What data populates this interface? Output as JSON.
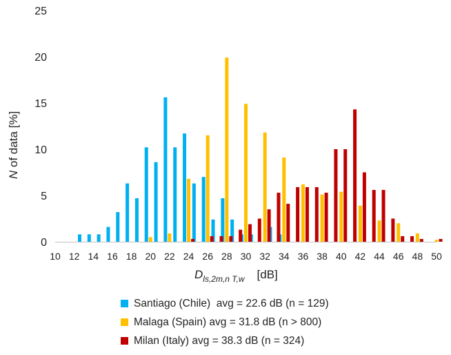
{
  "chart_data": {
    "type": "bar",
    "x": [
      10,
      11,
      12,
      13,
      14,
      15,
      16,
      17,
      18,
      19,
      20,
      21,
      22,
      23,
      24,
      25,
      26,
      27,
      28,
      29,
      30,
      31,
      32,
      33,
      34,
      35,
      36,
      37,
      38,
      39,
      40,
      41,
      42,
      43,
      44,
      45,
      46,
      47,
      48,
      49,
      50
    ],
    "xticks": [
      "10",
      "12",
      "14",
      "16",
      "18",
      "20",
      "22",
      "24",
      "26",
      "28",
      "30",
      "32",
      "34",
      "36",
      "38",
      "40",
      "42",
      "44",
      "46",
      "48",
      "50"
    ],
    "yticks": [
      "0",
      "5",
      "10",
      "15",
      "20",
      "25"
    ],
    "ylim": [
      0,
      25
    ],
    "xlim": [
      10,
      50
    ],
    "xlabel": {
      "symbol": "D",
      "subscript": "ls,2m,n T,w",
      "unit": "[dB]"
    },
    "ylabel": {
      "symbol": "N",
      "rest": " of data [%]"
    },
    "legend_position": "bottom",
    "grid": false,
    "series": [
      {
        "name": "Santiago (Chile)  avg = 22.6 dB (n = 129)",
        "color": "#00B0F0",
        "values": [
          0,
          0,
          0,
          0.8,
          0.8,
          0.8,
          1.6,
          3.2,
          6.3,
          4.7,
          10.2,
          8.6,
          15.6,
          10.2,
          11.7,
          6.3,
          7.0,
          2.4,
          4.7,
          2.4,
          0.8,
          0.8,
          0,
          1.6,
          0.8,
          0,
          0,
          0,
          0,
          0,
          0,
          0,
          0,
          0,
          0,
          0,
          0,
          0,
          0,
          0,
          0
        ]
      },
      {
        "name": "Malaga (Spain) avg = 31.8 dB (n > 800)",
        "color": "#FFC000",
        "values": [
          0,
          0,
          0,
          0,
          0,
          0,
          0,
          0,
          0,
          0,
          0.5,
          0,
          0.9,
          0,
          6.8,
          0,
          11.5,
          0,
          19.9,
          0,
          14.9,
          0,
          11.8,
          0,
          9.1,
          0,
          6.2,
          0,
          5.1,
          0,
          5.4,
          0,
          3.9,
          0,
          2.3,
          0,
          2.0,
          0,
          0.9,
          0,
          0.2
        ]
      },
      {
        "name": "Milan (Italy) avg = 38.3 dB (n = 324)",
        "color": "#C00000",
        "values": [
          0,
          0,
          0,
          0,
          0,
          0,
          0,
          0,
          0,
          0,
          0,
          0,
          0,
          0,
          0.3,
          0,
          0.6,
          0.6,
          0.6,
          1.3,
          1.9,
          2.5,
          3.5,
          5.3,
          4.1,
          5.9,
          5.9,
          5.9,
          5.3,
          10.0,
          10.0,
          14.3,
          7.5,
          5.6,
          5.6,
          2.5,
          0.6,
          0.6,
          0.3,
          0,
          0.3
        ]
      }
    ]
  }
}
